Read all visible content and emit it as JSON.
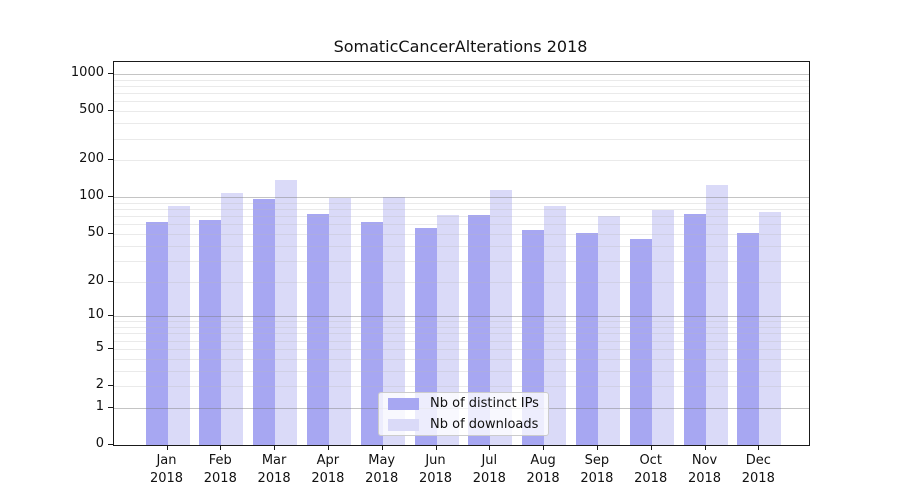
{
  "chart_data": {
    "type": "bar",
    "title": "SomaticCancerAlterations 2018",
    "categories": [
      "Jan",
      "Feb",
      "Mar",
      "Apr",
      "May",
      "Jun",
      "Jul",
      "Aug",
      "Sep",
      "Oct",
      "Nov",
      "Dec"
    ],
    "year_label": "2018",
    "series": [
      {
        "name": "Nb of distinct IPs",
        "color": "#a7a7f2",
        "values": [
          62,
          65,
          96,
          73,
          62,
          56,
          72,
          54,
          51,
          45,
          73,
          51
        ]
      },
      {
        "name": "Nb of downloads",
        "color": "#dadaf8",
        "values": [
          85,
          108,
          137,
          99,
          101,
          72,
          114,
          85,
          70,
          78,
          125,
          75
        ]
      }
    ],
    "xlabel": "",
    "ylabel": "",
    "yscale": "log1p",
    "ylim": [
      0,
      1250
    ],
    "yticks": [
      0,
      1,
      2,
      5,
      10,
      20,
      50,
      100,
      200,
      500,
      1000
    ],
    "grid": true,
    "legend_position": "lower center"
  }
}
